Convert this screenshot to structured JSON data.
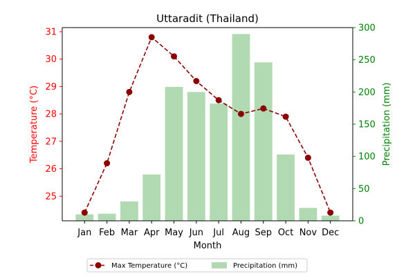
{
  "chart_data": {
    "type": "bar+line",
    "title": "Uttaradit (Thailand)",
    "xlabel": "Month",
    "ylabel_left": "Temperature (°C)",
    "ylabel_right": "Precipitation (mm)",
    "categories": [
      "Jan",
      "Feb",
      "Mar",
      "Apr",
      "May",
      "Jun",
      "Jul",
      "Aug",
      "Sep",
      "Oct",
      "Nov",
      "Dec"
    ],
    "y_left_ticks": [
      25,
      26,
      27,
      28,
      29,
      30,
      31
    ],
    "y_right_ticks": [
      0,
      50,
      100,
      150,
      200,
      250,
      300
    ],
    "ylim_left": [
      24.1,
      31.15
    ],
    "ylim_right": [
      0,
      300
    ],
    "grid": false,
    "legend_position": "below",
    "series": [
      {
        "name": "Max Temperature (°C)",
        "kind": "line",
        "axis": "left",
        "color": "#8b0000",
        "style": "dashed-with-circle-markers",
        "values": [
          24.4,
          26.2,
          28.8,
          30.8,
          30.1,
          29.2,
          28.5,
          28.0,
          28.2,
          27.9,
          26.4,
          24.4
        ]
      },
      {
        "name": "Precipitation (mm)",
        "kind": "bar",
        "axis": "right",
        "color": "#b2dab2",
        "values": [
          10,
          11,
          30,
          72,
          208,
          200,
          182,
          290,
          246,
          103,
          20,
          8
        ]
      }
    ],
    "left_axis_color": "#ff0000",
    "right_axis_color": "#008000"
  }
}
